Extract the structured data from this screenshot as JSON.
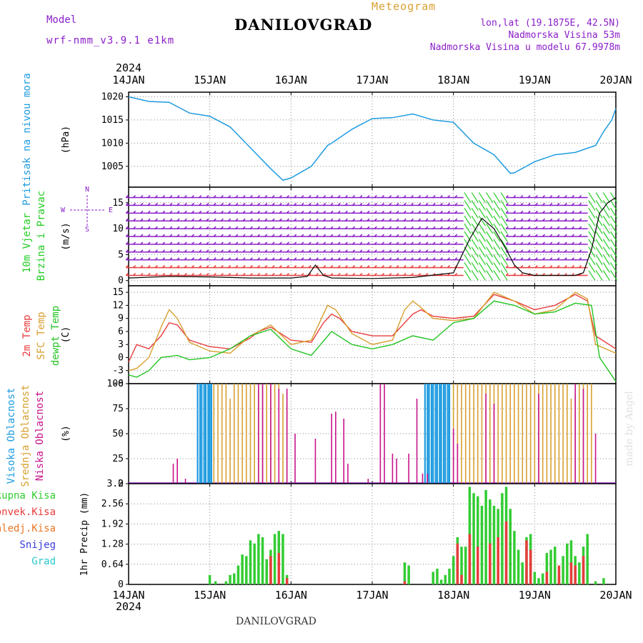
{
  "header": {
    "model_label": "Model",
    "model_name": "wrf-nmm_v3.9.1 e1km",
    "chart_kind": "Meteogram",
    "station": "DANILOVGRAD",
    "coords": "lon,lat (19.1875E, 42.5N)",
    "elevation": "Nadmorska Visina 53m",
    "model_elevation": "Nadmorska Visina u modelu 67.9978m",
    "footer_station": "DANILOVGRAD",
    "watermark": "made by Angel"
  },
  "colors": {
    "pressure": "#1e9be0",
    "wind_low": "#8a1ec8",
    "wind_high": "#22cc22",
    "temp2m": "#e83c3c",
    "sfc_temp": "#d8a030",
    "dewpt": "#22c422",
    "cloud_high": "#1e9be0",
    "cloud_mid": "#d8a030",
    "cloud_low": "#c8148c",
    "precip_total": "#33cc33",
    "precip_conv": "#e83c3c",
    "precip_large": "#e87828",
    "snow": "#3c3cdc",
    "graupel": "#28c8c8"
  },
  "chart_data": [
    {
      "type": "line",
      "title": "Pritisak na nivou mora",
      "ylabel": "(hPa)",
      "x_ticks": [
        "14JAN",
        "15JAN",
        "16JAN",
        "17JAN",
        "18JAN",
        "19JAN",
        "20JAN"
      ],
      "year": "2024",
      "ylim": [
        1000.5,
        1021
      ],
      "yticks": [
        1005,
        1010,
        1015,
        1020
      ],
      "grid": true,
      "series": [
        {
          "name": "Pritisak na nivou mora",
          "x": [
            0,
            0.25,
            0.5,
            0.75,
            1.0,
            1.25,
            1.5,
            1.75,
            1.9,
            2.0,
            2.25,
            2.45,
            2.5,
            2.75,
            3.0,
            3.25,
            3.5,
            3.75,
            4.0,
            4.25,
            4.5,
            4.7,
            4.75,
            5.0,
            5.25,
            5.5,
            5.75,
            5.85,
            5.95,
            6.0
          ],
          "y": [
            1020,
            1019,
            1018.8,
            1016.5,
            1015.8,
            1013.5,
            1009,
            1004.5,
            1002,
            1002.5,
            1005,
            1009.5,
            1010,
            1013,
            1015.3,
            1015.5,
            1016.3,
            1015,
            1014.5,
            1010,
            1007.5,
            1003.5,
            1003.6,
            1006,
            1007.5,
            1008,
            1009.5,
            1012.5,
            1015,
            1017.5
          ]
        }
      ]
    },
    {
      "type": "line",
      "title": "10m Vjetar Brzina i Pravac",
      "ylabel": "(m/s)",
      "compass": [
        "N",
        "W",
        "E",
        "S"
      ],
      "ylim": [
        -1,
        18
      ],
      "yticks": [
        0,
        5,
        10,
        15
      ],
      "grid": true,
      "series": [
        {
          "name": "Brzina",
          "x": [
            0,
            0.5,
            1.0,
            1.5,
            2.0,
            2.2,
            2.3,
            2.4,
            2.5,
            3.0,
            3.5,
            4.0,
            4.2,
            4.35,
            4.5,
            4.65,
            4.75,
            4.85,
            5.0,
            5.5,
            5.6,
            5.7,
            5.8,
            5.9,
            6.0
          ],
          "y": [
            0.5,
            0.8,
            0.7,
            0.5,
            0.5,
            0.8,
            3,
            1,
            0.5,
            0.4,
            0.6,
            1.5,
            8,
            12,
            10,
            6,
            3,
            1.5,
            1,
            1,
            1.5,
            6,
            13,
            15,
            16
          ]
        }
      ]
    },
    {
      "type": "line",
      "ylabel": "(C)",
      "ylim": [
        -6,
        16.5
      ],
      "yticks": [
        -6,
        -3,
        0,
        3,
        6,
        9,
        12,
        15
      ],
      "grid": true,
      "series": [
        {
          "name": "2m Temp",
          "x": [
            0,
            0.1,
            0.25,
            0.4,
            0.5,
            0.6,
            0.75,
            1.0,
            1.25,
            1.5,
            1.6,
            1.75,
            2.0,
            2.25,
            2.4,
            2.5,
            2.6,
            2.75,
            3.0,
            3.25,
            3.35,
            3.5,
            3.6,
            3.75,
            4.0,
            4.25,
            4.5,
            4.75,
            5.0,
            5.25,
            5.5,
            5.65,
            5.75,
            6.0
          ],
          "y": [
            -1,
            3,
            2,
            5,
            8,
            7.5,
            4,
            2.5,
            2,
            4.5,
            6,
            7,
            4,
            3.5,
            8,
            10,
            9,
            6,
            5,
            5,
            7,
            10,
            11,
            9.5,
            9,
            9.5,
            14.5,
            13,
            11,
            12,
            14.5,
            13,
            5,
            2
          ]
        },
        {
          "name": "SFC Temp",
          "x": [
            0,
            0.1,
            0.25,
            0.4,
            0.5,
            0.6,
            0.75,
            1.0,
            1.25,
            1.5,
            1.6,
            1.75,
            2.0,
            2.25,
            2.45,
            2.55,
            2.75,
            3.0,
            3.25,
            3.4,
            3.5,
            3.6,
            3.75,
            4.0,
            4.25,
            4.5,
            4.75,
            5.0,
            5.25,
            5.5,
            5.65,
            5.75,
            6.0
          ],
          "y": [
            -3,
            -2.5,
            0,
            7,
            11,
            9,
            3.5,
            1.5,
            1,
            5,
            6,
            7.5,
            3,
            4,
            12,
            11,
            5.5,
            3,
            4,
            11,
            13,
            11.5,
            9,
            8.5,
            9,
            15,
            13,
            10,
            11,
            15,
            13.5,
            3,
            1
          ]
        },
        {
          "name": "dewpt Temp",
          "x": [
            0,
            0.1,
            0.25,
            0.4,
            0.6,
            0.75,
            1.0,
            1.25,
            1.5,
            1.75,
            2.0,
            2.25,
            2.5,
            2.75,
            3.0,
            3.25,
            3.5,
            3.75,
            4.0,
            4.25,
            4.5,
            4.75,
            5.0,
            5.25,
            5.5,
            5.7,
            5.8,
            6.0
          ],
          "y": [
            -4,
            -4.5,
            -3,
            0,
            0.5,
            -0.5,
            0,
            2,
            5,
            6.5,
            2,
            0.5,
            6,
            3,
            2,
            3,
            5,
            4,
            8,
            9,
            13,
            12,
            10,
            10.5,
            12.5,
            12,
            0,
            -5.5
          ]
        }
      ]
    },
    {
      "type": "bar",
      "ylabel": "(%)",
      "ylim": [
        0,
        100
      ],
      "yticks": [
        0,
        25,
        50,
        75,
        100
      ],
      "grid": true,
      "series": [
        {
          "name": "Visoka Oblacnost",
          "x": [
            0.85,
            0.88,
            0.9,
            0.93,
            0.95,
            0.98,
            1.0,
            1.02,
            3.65,
            3.68,
            3.7,
            3.73,
            3.75,
            3.78,
            3.8,
            3.83,
            3.85,
            3.88,
            3.9,
            3.93,
            3.95
          ],
          "values": [
            100,
            100,
            100,
            100,
            100,
            100,
            100,
            100,
            100,
            100,
            100,
            100,
            100,
            100,
            100,
            100,
            100,
            100,
            100,
            100,
            100
          ]
        },
        {
          "name": "Srednja Oblacnost",
          "x": [
            1.05,
            1.1,
            1.15,
            1.2,
            1.25,
            1.3,
            1.35,
            1.4,
            1.45,
            1.5,
            1.55,
            1.6,
            1.65,
            1.7,
            1.75,
            1.8,
            1.85,
            1.9,
            1.95,
            4.0,
            4.05,
            4.1,
            4.15,
            4.2,
            4.25,
            4.3,
            4.35,
            4.4,
            4.45,
            4.5,
            4.55,
            4.6,
            4.65,
            4.7,
            4.75,
            4.8,
            4.85,
            4.9,
            4.95,
            5.0,
            5.05,
            5.1,
            5.15,
            5.2,
            5.25,
            5.3,
            5.35,
            5.4,
            5.45,
            5.5,
            5.55,
            5.6,
            5.65,
            5.7
          ],
          "values": [
            100,
            100,
            100,
            100,
            85,
            100,
            100,
            100,
            100,
            100,
            100,
            95,
            100,
            100,
            100,
            100,
            100,
            90,
            80,
            100,
            100,
            100,
            100,
            100,
            100,
            100,
            100,
            100,
            100,
            100,
            100,
            100,
            100,
            100,
            100,
            100,
            100,
            100,
            100,
            100,
            100,
            100,
            100,
            100,
            100,
            100,
            100,
            100,
            85,
            90,
            100,
            100,
            100,
            100
          ]
        },
        {
          "name": "Niska Oblacnost",
          "x": [
            0.55,
            0.6,
            0.7,
            1.6,
            1.65,
            1.75,
            1.85,
            1.95,
            2.05,
            2.3,
            2.5,
            2.55,
            2.65,
            2.7,
            2.95,
            3.1,
            3.15,
            3.25,
            3.3,
            3.45,
            3.55,
            3.62,
            3.68,
            4.0,
            4.05,
            4.4,
            4.5,
            5.05,
            5.5,
            5.6,
            5.75
          ],
          "values": [
            20,
            25,
            5,
            100,
            100,
            100,
            95,
            95,
            50,
            45,
            70,
            72,
            65,
            20,
            5,
            100,
            100,
            30,
            25,
            30,
            85,
            10,
            10,
            55,
            40,
            90,
            80,
            90,
            100,
            95,
            50
          ]
        }
      ]
    },
    {
      "type": "bar",
      "ylabel": "1hr Precip (mm)",
      "ylim": [
        0,
        3.2
      ],
      "yticks": [
        0,
        0.64,
        1.28,
        1.92,
        2.56,
        3.2
      ],
      "grid": true,
      "series": [
        {
          "name": "Ukupna Kisa",
          "x": [
            1.0,
            1.07,
            1.2,
            1.25,
            1.3,
            1.35,
            1.4,
            1.45,
            1.5,
            1.55,
            1.6,
            1.65,
            1.7,
            1.75,
            1.8,
            1.85,
            1.9,
            1.95,
            3.4,
            3.45,
            3.75,
            3.8,
            3.85,
            3.9,
            3.95,
            4.0,
            4.05,
            4.1,
            4.15,
            4.2,
            4.25,
            4.3,
            4.35,
            4.4,
            4.45,
            4.5,
            4.55,
            4.6,
            4.65,
            4.7,
            4.75,
            4.8,
            4.85,
            4.9,
            4.95,
            5.0,
            5.05,
            5.1,
            5.15,
            5.2,
            5.25,
            5.3,
            5.35,
            5.4,
            5.45,
            5.5,
            5.55,
            5.6,
            5.65,
            5.75,
            5.85
          ],
          "values": [
            0.3,
            0.1,
            0.1,
            0.3,
            0.35,
            0.6,
            0.95,
            0.9,
            1.4,
            1.3,
            1.6,
            1.5,
            0.8,
            1.1,
            1.6,
            1.7,
            1.6,
            0.3,
            0.7,
            0.6,
            0.4,
            0.5,
            0.15,
            0.3,
            0.5,
            0.9,
            1.5,
            1.2,
            1.2,
            3.1,
            2.9,
            2.8,
            2.5,
            3.0,
            2.7,
            2.5,
            2.4,
            2.9,
            3.1,
            2.4,
            1.7,
            1.1,
            0.7,
            1.5,
            1.6,
            0.4,
            0.2,
            0.35,
            1.0,
            1.1,
            1.2,
            0.3,
            0.9,
            1.3,
            1.4,
            0.9,
            0.7,
            1.2,
            1.6,
            0.1,
            0.2
          ]
        },
        {
          "name": "Konvek.Kisa",
          "x": [
            1.75,
            1.85,
            1.95,
            3.4,
            4.05,
            4.1,
            4.2,
            4.3,
            4.45,
            4.55,
            4.65,
            4.9,
            4.95,
            5.15,
            5.3,
            5.45,
            5.5,
            5.6
          ],
          "values": [
            0.9,
            1.0,
            0.2,
            0.1,
            1.3,
            0.3,
            1.6,
            1.2,
            1.3,
            1.5,
            2.0,
            1.4,
            1.1,
            0.4,
            0.6,
            0.7,
            0.6,
            0.9
          ]
        },
        {
          "name": "Zaledj.Kisa",
          "x": [],
          "values": []
        },
        {
          "name": "Snijeg",
          "x": [],
          "values": []
        },
        {
          "name": "Grad",
          "x": [],
          "values": []
        }
      ]
    }
  ]
}
